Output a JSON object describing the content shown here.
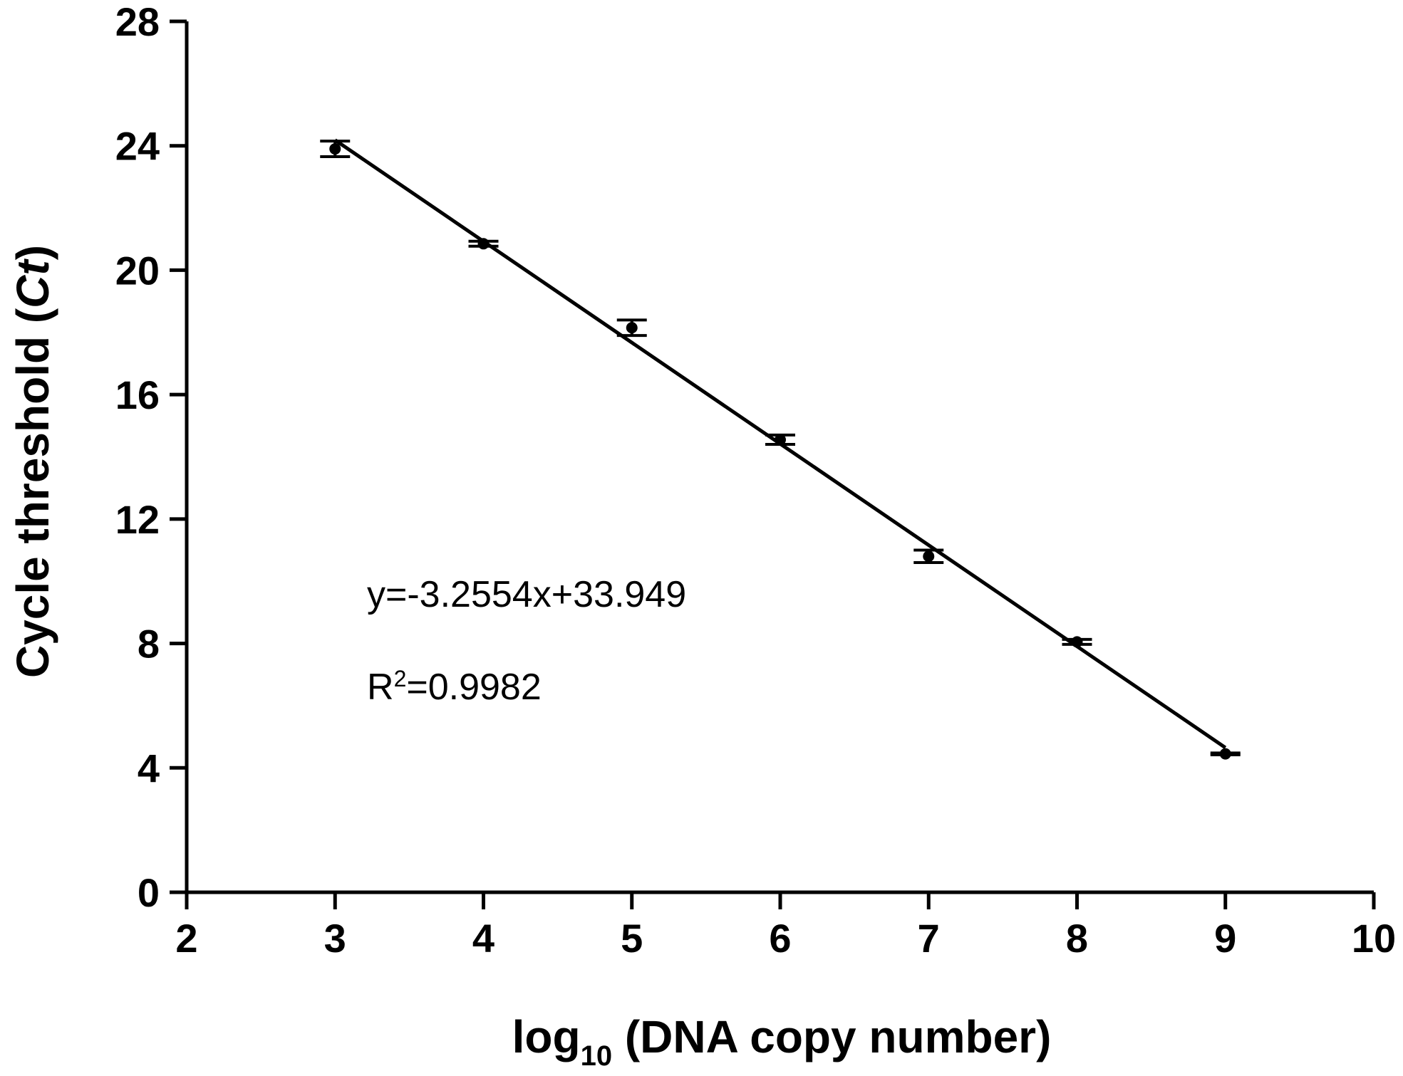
{
  "chart_data": {
    "type": "scatter",
    "title": "",
    "xlabel": {
      "prefix": "log",
      "subscript": "10",
      "suffix": " (DNA copy number)"
    },
    "ylabel": {
      "prefix": "Cycle threshold (",
      "italic": "Ct",
      "suffix": ")"
    },
    "xlim": [
      2,
      10
    ],
    "ylim": [
      0,
      28
    ],
    "x_ticks": [
      2,
      3,
      4,
      5,
      6,
      7,
      8,
      9,
      10
    ],
    "y_ticks": [
      0,
      4,
      8,
      12,
      16,
      20,
      24,
      28
    ],
    "grid": false,
    "legend": "none",
    "series": [
      {
        "points": [
          {
            "x": 3,
            "y": 23.9,
            "err": 0.25
          },
          {
            "x": 4,
            "y": 20.85,
            "err": 0.08
          },
          {
            "x": 5,
            "y": 18.15,
            "err": 0.25
          },
          {
            "x": 6,
            "y": 14.55,
            "err": 0.15
          },
          {
            "x": 7,
            "y": 10.8,
            "err": 0.2
          },
          {
            "x": 8,
            "y": 8.05,
            "err": 0.08
          },
          {
            "x": 9,
            "y": 4.45,
            "err": 0.03
          }
        ]
      }
    ],
    "fit": {
      "slope": -3.2554,
      "intercept": 33.949,
      "x_range": [
        3,
        9
      ]
    },
    "annotations": {
      "equation": "y=-3.2554x+33.949",
      "r2_prefix": "R",
      "r2_sup": "2",
      "r2_suffix": "=0.9982"
    }
  }
}
